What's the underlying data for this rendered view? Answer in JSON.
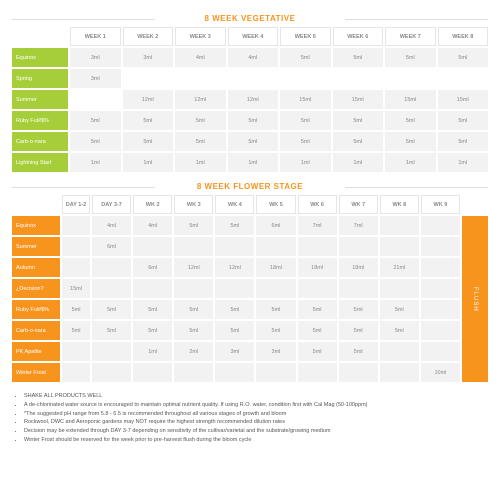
{
  "colors": {
    "green": "#a6ce39",
    "orange": "#f7941e",
    "cell_bg": "#f2f2f2",
    "text": "#888888"
  },
  "veg": {
    "title": "8 WEEK VEGETATIVE",
    "headers": [
      "WEEK 1",
      "WEEK 2",
      "WEEK 3",
      "WEEK 4",
      "WEEK 5",
      "WEEK 6",
      "WEEK 7",
      "WEEK 8"
    ],
    "rows": [
      {
        "label": "Equinox",
        "color": "green",
        "cells": [
          "3ml",
          "3ml",
          "4ml",
          "4ml",
          "5ml",
          "5ml",
          "5ml",
          "5ml"
        ]
      },
      {
        "label": "Spring",
        "color": "green",
        "cells": [
          "3ml",
          "",
          "",
          "",
          "",
          "",
          "",
          ""
        ]
      },
      {
        "label": "Summer",
        "color": "green",
        "cells": [
          "",
          "12ml",
          "12ml",
          "12ml",
          "15ml",
          "15ml",
          "15ml",
          "15ml"
        ]
      },
      {
        "label": "Ruby Ful#$%",
        "color": "green",
        "cells": [
          "5ml",
          "5ml",
          "5ml",
          "5ml",
          "5ml",
          "5ml",
          "5ml",
          "5ml"
        ]
      },
      {
        "label": "Carb-o-nara",
        "color": "green",
        "cells": [
          "5ml",
          "5ml",
          "5ml",
          "5ml",
          "5ml",
          "5ml",
          "5ml",
          "5ml"
        ]
      },
      {
        "label": "Lightning Start",
        "color": "green",
        "cells": [
          "1ml",
          "1ml",
          "1ml",
          "1ml",
          "1ml",
          "1ml",
          "1ml",
          "1ml"
        ]
      }
    ]
  },
  "flower": {
    "title": "8 WEEK FLOWER STAGE",
    "headers": [
      "DAY 1-2",
      "DAY 3-7",
      "WK 2",
      "WK 3",
      "WK 4",
      "WK 5",
      "WK 6",
      "WK 7",
      "WK 8",
      "WK 9"
    ],
    "flush_label": "FLUSH",
    "rows": [
      {
        "label": "Equinox",
        "color": "orange",
        "cells": [
          "",
          "4ml",
          "4ml",
          "5ml",
          "5ml",
          "6ml",
          "7ml",
          "7ml",
          "",
          ""
        ]
      },
      {
        "label": "Summer",
        "color": "orange",
        "cells": [
          "",
          "6ml",
          "",
          "",
          "",
          "",
          "",
          "",
          "",
          ""
        ]
      },
      {
        "label": "Autumn",
        "color": "orange",
        "cells": [
          "",
          "",
          "6ml",
          "12ml",
          "12ml",
          "18ml",
          "18ml",
          "18ml",
          "21ml",
          ""
        ]
      },
      {
        "label": "¿Decision?",
        "color": "orange",
        "cells": [
          "15ml",
          "",
          "",
          "",
          "",
          "",
          "",
          "",
          "",
          ""
        ]
      },
      {
        "label": "Ruby Ful#$%",
        "color": "orange",
        "cells": [
          "5ml",
          "5ml",
          "5ml",
          "5ml",
          "5ml",
          "5ml",
          "5ml",
          "5ml",
          "5ml",
          ""
        ]
      },
      {
        "label": "Carb-o-nara",
        "color": "orange",
        "cells": [
          "5ml",
          "5ml",
          "5ml",
          "5ml",
          "5ml",
          "5ml",
          "5ml",
          "5ml",
          "5ml",
          ""
        ]
      },
      {
        "label": "PK Apatite",
        "color": "orange",
        "cells": [
          "",
          "",
          "1ml",
          "2ml",
          "3ml",
          "3ml",
          "5ml",
          "5ml",
          "",
          ""
        ]
      },
      {
        "label": "Winter Frost",
        "color": "orange",
        "cells": [
          "",
          "",
          "",
          "",
          "",
          "",
          "",
          "",
          "",
          "10ml"
        ]
      }
    ]
  },
  "notes": [
    "SHAKE ALL PRODUCTS WELL",
    "A de-chlorinated water source is encouraged to maintain optimal nutrient quality. If using R.O. water, condition first with Cal Mag (50-100ppm)",
    "*The suggested pH range from 5.8 - 6.5 is recommended throughout all various stages of growth and bloom",
    "Rockwool, DWC and Aeroponic gardens may NOT require the highest strength recommended dilution rates",
    "Decision may be extended through DAY 3-7 depending on sensitivity of the cultivar/varietal and the substrate/growing medium",
    "Winter Frost should be reserved for the week prior to pre-harvest flush during the bloom cycle"
  ]
}
